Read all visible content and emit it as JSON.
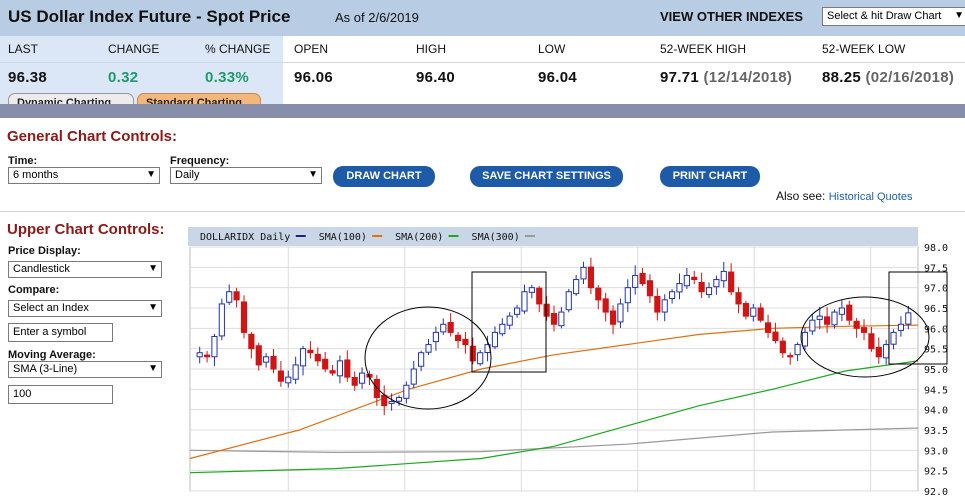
{
  "header": {
    "title": "US Dollar Index Future - Spot Price",
    "as_of": "As of 2/6/2019",
    "view_other": "VIEW OTHER INDEXES",
    "select_value": "Select & hit Draw Chart"
  },
  "quote": {
    "labels": [
      "LAST",
      "CHANGE",
      "% CHANGE",
      "OPEN",
      "HIGH",
      "LOW",
      "52-WEEK HIGH",
      "52-WEEK LOW"
    ],
    "last": "96.38",
    "change": "0.32",
    "pct_change": "0.33%",
    "open": "96.06",
    "high": "96.40",
    "low": "96.04",
    "wk52_high": "97.71",
    "wk52_high_date": "(12/14/2018)",
    "wk52_low": "88.25",
    "wk52_low_date": "(02/16/2018)"
  },
  "tabs": [
    "Dynamic Charting",
    "Standard Charting"
  ],
  "general": {
    "title": "General Chart Controls:",
    "time_label": "Time:",
    "time_value": "6 months",
    "freq_label": "Frequency:",
    "freq_value": "Daily",
    "draw_btn": "DRAW CHART",
    "save_btn": "SAVE CHART SETTINGS",
    "print_btn": "PRINT CHART",
    "also_see": "Also see:",
    "historical": "Historical Quotes"
  },
  "upper": {
    "title": "Upper Chart Controls:",
    "price_label": "Price Display:",
    "price_value": "Candlestick",
    "compare_label": "Compare:",
    "compare_value": "Select an Index",
    "symbol_placeholder": "Enter a symbol",
    "ma_label": "Moving Average:",
    "ma_value": "SMA (3-Line)",
    "ma_period": "100"
  },
  "icons": {
    "dropdown": "chevron-down-icon"
  },
  "colors": {
    "header_bg": "#b8cce4",
    "change_green": "#1e9b6a",
    "button_blue": "#1d5aa8",
    "section_red": "#8b1a1a",
    "candle_up": "#2233aa",
    "candle_down": "#d01515",
    "sma100": "#e07010",
    "sma200": "#1aaa1a",
    "sma300": "#999999"
  },
  "chart_data": {
    "type": "candlestick",
    "legend": [
      {
        "name": "DOLLARIDX Daily",
        "color": "#1a237e"
      },
      {
        "name": "SMA(100)",
        "color": "#e07010"
      },
      {
        "name": "SMA(200)",
        "color": "#1aaa1a"
      },
      {
        "name": "SMA(300)",
        "color": "#999999"
      }
    ],
    "ylim": [
      92.0,
      98.0
    ],
    "yticks": [
      "98.0",
      "97.5",
      "97.0",
      "96.5",
      "96.0",
      "95.5",
      "95.0",
      "94.5",
      "94.0",
      "93.5",
      "93.0",
      "92.5",
      "92.0"
    ],
    "closes": [
      95.4,
      95.3,
      95.8,
      96.6,
      96.9,
      96.7,
      95.9,
      95.5,
      95.1,
      95.3,
      95.0,
      94.7,
      94.8,
      95.1,
      95.5,
      95.4,
      95.2,
      95.0,
      94.9,
      95.2,
      94.8,
      94.6,
      94.9,
      94.8,
      94.3,
      94.1,
      94.2,
      94.3,
      94.6,
      95.0,
      95.4,
      95.6,
      95.9,
      96.1,
      95.9,
      95.7,
      95.6,
      95.2,
      95.4,
      95.6,
      95.9,
      96.1,
      96.3,
      96.5,
      96.9,
      97.0,
      96.6,
      96.3,
      96.1,
      96.4,
      96.9,
      97.2,
      97.5,
      97.0,
      96.7,
      96.4,
      96.1,
      96.6,
      97.0,
      97.3,
      97.1,
      96.8,
      96.4,
      96.7,
      96.9,
      97.1,
      97.3,
      97.2,
      96.9,
      97.0,
      97.2,
      97.4,
      96.9,
      96.6,
      96.3,
      96.5,
      96.2,
      95.9,
      95.7,
      95.4,
      95.3,
      95.6,
      95.9,
      96.2,
      96.3,
      96.1,
      96.4,
      96.5,
      96.2,
      96.0,
      95.9,
      95.5,
      95.3,
      95.6,
      95.9,
      96.1,
      96.38
    ],
    "sma100": [
      [
        0,
        92.8
      ],
      [
        0.15,
        93.5
      ],
      [
        0.3,
        94.5
      ],
      [
        0.4,
        95.0
      ],
      [
        0.5,
        95.35
      ],
      [
        0.6,
        95.6
      ],
      [
        0.7,
        95.85
      ],
      [
        0.8,
        96.0
      ],
      [
        0.9,
        96.05
      ],
      [
        1.0,
        96.08
      ]
    ],
    "sma200": [
      [
        0,
        92.45
      ],
      [
        0.2,
        92.55
      ],
      [
        0.4,
        92.8
      ],
      [
        0.5,
        93.1
      ],
      [
        0.6,
        93.6
      ],
      [
        0.7,
        94.1
      ],
      [
        0.8,
        94.5
      ],
      [
        0.9,
        94.95
      ],
      [
        1.0,
        95.2
      ]
    ],
    "sma300": [
      [
        0,
        93.0
      ],
      [
        0.2,
        92.95
      ],
      [
        0.4,
        92.97
      ],
      [
        0.6,
        93.15
      ],
      [
        0.8,
        93.45
      ],
      [
        1.0,
        93.55
      ]
    ]
  }
}
